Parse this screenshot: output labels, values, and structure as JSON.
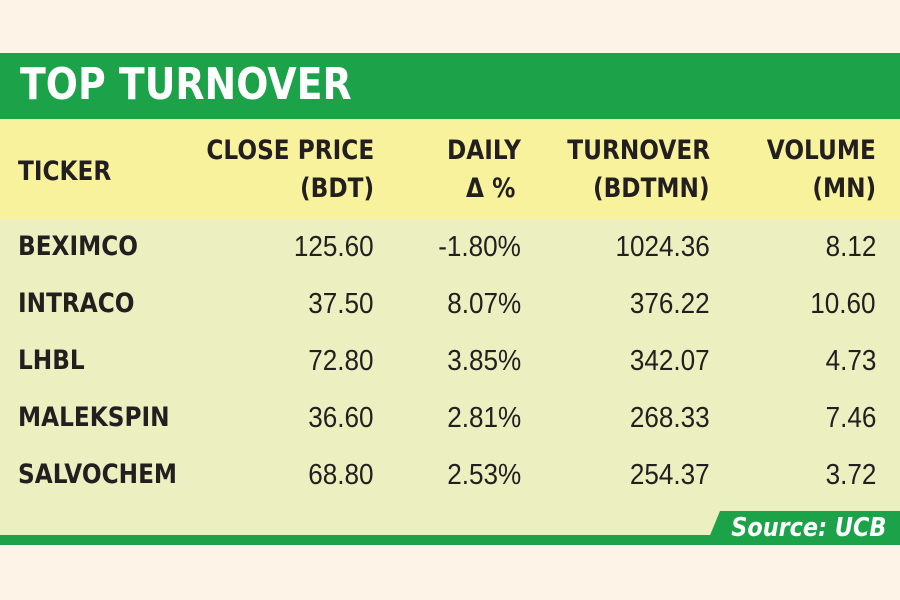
{
  "chart_data": {
    "type": "table",
    "title": "TOP TURNOVER",
    "columns": [
      {
        "line1": "TICKER",
        "line2": ""
      },
      {
        "line1": "CLOSE PRICE",
        "line2": "(BDT)"
      },
      {
        "line1": "DAILY",
        "line2": "Δ %"
      },
      {
        "line1": "TURNOVER",
        "line2": "(BDTMN)"
      },
      {
        "line1": "VOLUME",
        "line2": "(MN)"
      }
    ],
    "rows": [
      [
        "BEXIMCO",
        "125.60",
        "-1.80%",
        "1024.36",
        "8.12"
      ],
      [
        "INTRACO",
        "37.50",
        "8.07%",
        "376.22",
        "10.60"
      ],
      [
        "LHBL",
        "72.80",
        "3.85%",
        "342.07",
        "4.73"
      ],
      [
        "MALEKSPIN",
        "36.60",
        "2.81%",
        "268.33",
        "7.46"
      ],
      [
        "SALVOCHEM",
        "68.80",
        "2.53%",
        "254.37",
        "3.72"
      ]
    ],
    "source": "Source: UCB"
  },
  "colors": {
    "background": "#fdf3e6",
    "title_bar": "#1ca34a",
    "header_row": "#f7f29b",
    "body": "#ecefbf",
    "text": "#231f20"
  }
}
